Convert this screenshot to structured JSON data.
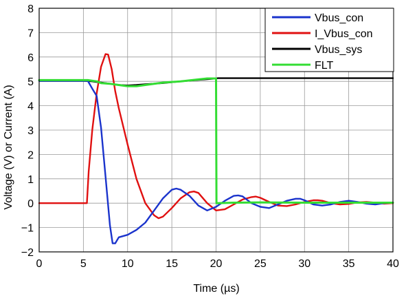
{
  "chart_data": {
    "type": "line",
    "title": "",
    "xlabel": "Time (µs)",
    "ylabel": "Voltage (V) or Current (A)",
    "xlim": [
      0,
      40
    ],
    "ylim": [
      -2,
      8
    ],
    "xticks": [
      "0",
      "5",
      "10",
      "15",
      "20",
      "25",
      "30",
      "35",
      "40"
    ],
    "yticks": [
      "−2",
      "−1",
      "0",
      "1",
      "2",
      "3",
      "4",
      "5",
      "6",
      "7",
      "8"
    ],
    "grid": true,
    "legend_position": "top-right",
    "series": [
      {
        "name": "Vbus_con",
        "color": "#1a33cc",
        "x": [
          0,
          5.5,
          6.0,
          6.5,
          7.0,
          7.5,
          8.0,
          8.3,
          8.6,
          9.0,
          10.0,
          11.0,
          12.0,
          13.0,
          14.0,
          15.0,
          15.5,
          16.0,
          17.0,
          18.0,
          19.0,
          20.0,
          21.0,
          22.0,
          22.5,
          23.0,
          24.0,
          25.0,
          26.0,
          27.0,
          28.0,
          29.0,
          29.5,
          30.0,
          31.0,
          32.0,
          33.0,
          34.0,
          35.0,
          36.0,
          37.0,
          38.0,
          39.0,
          40.0
        ],
        "y": [
          5.02,
          5.02,
          4.7,
          4.4,
          3.1,
          1.1,
          -0.9,
          -1.65,
          -1.65,
          -1.4,
          -1.3,
          -1.1,
          -0.8,
          -0.3,
          0.2,
          0.55,
          0.6,
          0.55,
          0.3,
          -0.1,
          -0.3,
          -0.15,
          0.1,
          0.3,
          0.32,
          0.28,
          0.0,
          -0.15,
          -0.2,
          -0.05,
          0.1,
          0.18,
          0.18,
          0.12,
          -0.05,
          -0.1,
          -0.05,
          0.05,
          0.1,
          0.05,
          -0.02,
          -0.05,
          0.0,
          0.02
        ]
      },
      {
        "name": "I_Vbus_con",
        "color": "#e01010",
        "x": [
          0,
          5.4,
          5.6,
          6.0,
          6.5,
          7.0,
          7.5,
          7.8,
          8.2,
          8.6,
          9.0,
          10.0,
          11.0,
          12.0,
          13.0,
          13.5,
          14.0,
          15.0,
          16.0,
          17.0,
          17.5,
          18.0,
          19.0,
          20.0,
          21.0,
          22.0,
          23.0,
          24.0,
          24.5,
          25.0,
          26.0,
          27.0,
          28.0,
          29.0,
          30.0,
          31.0,
          31.5,
          32.0,
          33.0,
          34.0,
          35.0,
          36.0,
          37.0,
          38.0,
          39.0,
          40.0
        ],
        "y": [
          0.0,
          0.0,
          1.3,
          3.0,
          4.5,
          5.6,
          6.12,
          6.1,
          5.5,
          4.6,
          3.9,
          2.4,
          1.0,
          0.0,
          -0.5,
          -0.62,
          -0.55,
          -0.2,
          0.2,
          0.45,
          0.48,
          0.42,
          0.0,
          -0.3,
          -0.25,
          -0.05,
          0.15,
          0.25,
          0.27,
          0.22,
          0.05,
          -0.1,
          -0.12,
          -0.05,
          0.05,
          0.12,
          0.12,
          0.1,
          0.0,
          -0.05,
          -0.03,
          0.03,
          0.05,
          0.02,
          -0.02,
          0.0
        ]
      },
      {
        "name": "Vbus_sys",
        "color": "#000000",
        "x": [
          0,
          5.0,
          6.0,
          7.0,
          8.0,
          9.0,
          10.0,
          11.0,
          12.0,
          14.0,
          16.0,
          18.0,
          20.0,
          20.2,
          40.0
        ],
        "y": [
          5.02,
          5.02,
          5.0,
          4.95,
          4.9,
          4.85,
          4.83,
          4.85,
          4.88,
          4.93,
          5.0,
          5.06,
          5.12,
          5.13,
          5.13
        ]
      },
      {
        "name": "FLT",
        "color": "#33dd33",
        "x": [
          0,
          5.5,
          6.5,
          7.0,
          8.0,
          9.0,
          10.0,
          11.0,
          12.0,
          14.0,
          16.0,
          18.0,
          19.0,
          20.0,
          20.05,
          22.0,
          25.0,
          30.0,
          35.0,
          40.0
        ],
        "y": [
          5.05,
          5.05,
          5.0,
          4.93,
          4.9,
          4.85,
          4.8,
          4.8,
          4.85,
          4.95,
          5.0,
          5.08,
          5.12,
          5.12,
          0.0,
          0.02,
          0.03,
          0.02,
          0.02,
          0.02
        ]
      }
    ]
  }
}
